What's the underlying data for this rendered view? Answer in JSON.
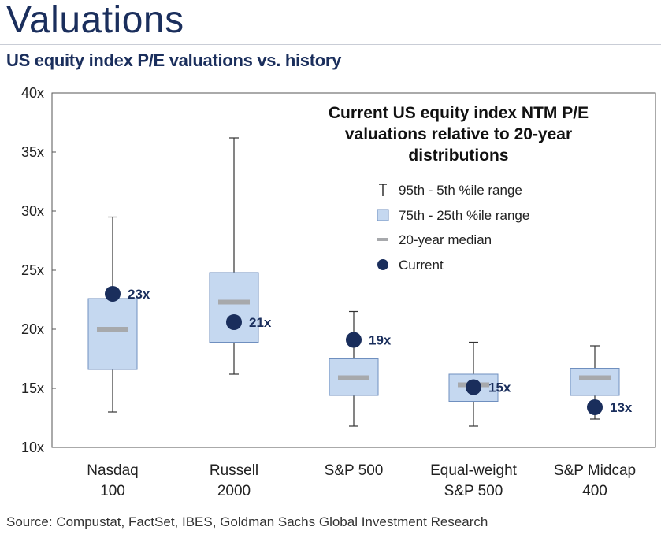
{
  "page": {
    "title": "Valuations",
    "subtitle": "US equity index P/E valuations vs. history",
    "source": "Source: Compustat, FactSet, IBES, Goldman Sachs Global Investment Research"
  },
  "colors": {
    "title": "#1a2e5c",
    "box_fill": "#c5d8f0",
    "box_stroke": "#6f8fbf",
    "median": "#a7a9ac",
    "current_dot": "#1a2e5c",
    "whisker": "#333333"
  },
  "chart_data": {
    "type": "boxplot",
    "title": "Current US equity index NTM P/E valuations relative to 20-year distributions",
    "title_lines": [
      "Current US equity index NTM P/E",
      "valuations relative to 20-year",
      "distributions"
    ],
    "ylim": [
      10,
      40
    ],
    "yticks": [
      10,
      15,
      20,
      25,
      30,
      35,
      40
    ],
    "ytick_labels": [
      "10x",
      "15x",
      "20x",
      "25x",
      "30x",
      "35x",
      "40x"
    ],
    "grid": false,
    "legend_position": "top-right",
    "legend": [
      {
        "marker": "whisker",
        "label": "95th - 5th %ile range"
      },
      {
        "marker": "box",
        "label": "75th - 25th %ile range"
      },
      {
        "marker": "median",
        "label": "20-year median"
      },
      {
        "marker": "dot",
        "label": "Current"
      }
    ],
    "categories": [
      {
        "label_lines": [
          "Nasdaq",
          "100"
        ],
        "p5": 13.0,
        "p25": 16.6,
        "median": 20.0,
        "p75": 22.6,
        "p95": 29.5,
        "current": 23.0,
        "current_label": "23x"
      },
      {
        "label_lines": [
          "Russell",
          "2000"
        ],
        "p5": 16.2,
        "p25": 18.9,
        "median": 22.3,
        "p75": 24.8,
        "p95": 36.2,
        "current": 20.6,
        "current_label": "21x"
      },
      {
        "label_lines": [
          "S&P 500"
        ],
        "p5": 11.8,
        "p25": 14.4,
        "median": 15.9,
        "p75": 17.5,
        "p95": 21.5,
        "current": 19.1,
        "current_label": "19x"
      },
      {
        "label_lines": [
          "Equal-weight",
          "S&P 500"
        ],
        "p5": 11.8,
        "p25": 13.9,
        "median": 15.3,
        "p75": 16.2,
        "p95": 18.9,
        "current": 15.1,
        "current_label": "15x"
      },
      {
        "label_lines": [
          "S&P Midcap",
          "400"
        ],
        "p5": 12.4,
        "p25": 14.4,
        "median": 15.9,
        "p75": 16.7,
        "p95": 18.6,
        "current": 13.4,
        "current_label": "13x"
      }
    ]
  }
}
